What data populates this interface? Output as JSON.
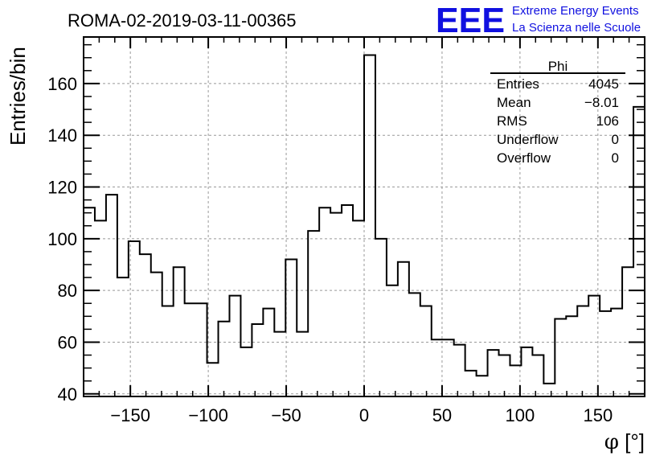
{
  "chart_data": {
    "type": "histogram",
    "title": "ROMA-02-2019-03-11-00365",
    "xlabel": "φ [°]",
    "xlabel_symbol": "φ",
    "xlabel_unit": "[°]",
    "ylabel": "Entries/bin",
    "xlim": [
      -180,
      180
    ],
    "ylim": [
      39,
      178
    ],
    "bin_width": 7.2,
    "x_ticks": [
      -150,
      -100,
      -50,
      0,
      50,
      100,
      150
    ],
    "x_tick_labels": [
      "−150",
      "−100",
      "−50",
      "0",
      "50",
      "100",
      "150"
    ],
    "y_ticks": [
      40,
      60,
      80,
      100,
      120,
      140,
      160
    ],
    "y_tick_labels": [
      "40",
      "60",
      "80",
      "100",
      "120",
      "140",
      "160"
    ],
    "grid": true,
    "values": [
      112,
      107,
      117,
      85,
      99,
      94,
      87,
      74,
      89,
      75,
      75,
      52,
      68,
      78,
      58,
      67,
      73,
      64,
      92,
      64,
      103,
      112,
      110,
      113,
      107,
      171,
      100,
      82,
      91,
      79,
      74,
      61,
      61,
      59,
      49,
      47,
      57,
      55,
      51,
      58,
      55,
      44,
      69,
      70,
      74,
      78,
      72,
      73,
      89,
      151
    ]
  },
  "stats_box": {
    "name": "Phi",
    "rows": [
      {
        "label": "Entries",
        "value": "4045"
      },
      {
        "label": "Mean",
        "value": "−8.01"
      },
      {
        "label": "RMS",
        "value": "106"
      },
      {
        "label": "Underflow",
        "value": "0"
      },
      {
        "label": "Overflow",
        "value": "0"
      }
    ]
  },
  "logo": {
    "mark": "EEE",
    "line1": "Extreme Energy Events",
    "line2": "La Scienza nelle Scuole",
    "color": "#1010e0"
  }
}
